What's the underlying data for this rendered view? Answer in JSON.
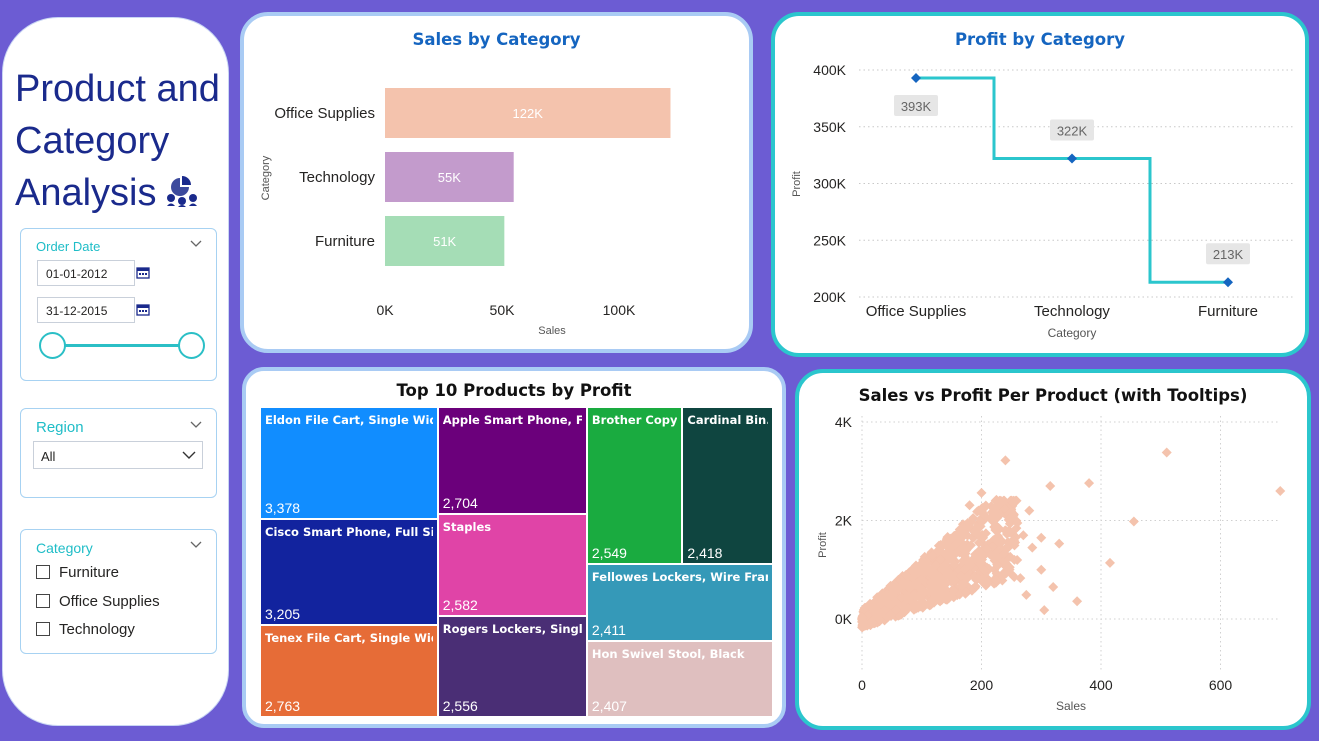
{
  "sidebar": {
    "title_lines": [
      "Product and",
      "Category",
      "Analysis"
    ],
    "title_icon": "analytics-icon",
    "order_date": {
      "label": "Order Date",
      "start": "01-01-2012",
      "end": "31-12-2015",
      "range": [
        0,
        1
      ]
    },
    "region": {
      "label": "Region",
      "selected": "All"
    },
    "category": {
      "label": "Category",
      "items": [
        {
          "label": "Furniture",
          "checked": false
        },
        {
          "label": "Office Supplies",
          "checked": false
        },
        {
          "label": "Technology",
          "checked": false
        }
      ]
    }
  },
  "colors": {
    "background": "#6c5cd3",
    "title_blue": "#1565c0",
    "accent_teal": "#2bc6cd",
    "profit_marker": "#1565c0",
    "scatter_points": "#f4c3ad"
  },
  "chart_data": [
    {
      "id": "sales_by_category",
      "type": "bar",
      "orientation": "horizontal",
      "title": "Sales by Category",
      "xlabel": "Sales",
      "ylabel": "Category",
      "categories": [
        "Office Supplies",
        "Technology",
        "Furniture"
      ],
      "values": [
        122000,
        55000,
        51000
      ],
      "data_labels": [
        "122K",
        "55K",
        "51K"
      ],
      "colors": [
        "#f4c3ad",
        "#c39bcc",
        "#a5ddb6"
      ],
      "xticks": [
        0,
        50000,
        100000
      ],
      "xtick_labels": [
        "0K",
        "50K",
        "100K"
      ],
      "xlim": [
        0,
        130000
      ]
    },
    {
      "id": "profit_by_category",
      "type": "line",
      "step": true,
      "title": "Profit by Category",
      "xlabel": "Category",
      "ylabel": "Profit",
      "categories": [
        "Office Supplies",
        "Technology",
        "Furniture"
      ],
      "values": [
        393000,
        322000,
        213000
      ],
      "data_labels": [
        "393K",
        "322K",
        "213K"
      ],
      "yticks": [
        200000,
        250000,
        300000,
        350000,
        400000
      ],
      "ytick_labels": [
        "200K",
        "250K",
        "300K",
        "350K",
        "400K"
      ],
      "ylim": [
        200000,
        400000
      ],
      "grid": true
    },
    {
      "id": "top10_products",
      "type": "treemap",
      "title": "Top 10 Products by Profit",
      "items": [
        {
          "name": "Eldon File Cart, Single Width",
          "value": 3378,
          "label": "3,378",
          "color": "#118dff"
        },
        {
          "name": "Cisco Smart Phone, Full Size",
          "value": 3205,
          "label": "3,205",
          "color": "#12239e"
        },
        {
          "name": "Tenex File Cart, Single Width",
          "value": 2763,
          "label": "2,763",
          "color": "#e66c37"
        },
        {
          "name": "Apple Smart Phone, F...",
          "value": 2704,
          "label": "2,704",
          "color": "#6b007b"
        },
        {
          "name": "Staples",
          "value": 2582,
          "label": "2,582",
          "color": "#e044a7"
        },
        {
          "name": "Rogers Lockers, Single...",
          "value": 2556,
          "label": "2,556",
          "color": "#4a2e75"
        },
        {
          "name": "Brother Copy...",
          "value": 2549,
          "label": "2,549",
          "color": "#1aab40"
        },
        {
          "name": "Cardinal Bin...",
          "value": 2418,
          "label": "2,418",
          "color": "#0f4540"
        },
        {
          "name": "Fellowes Lockers, Wire Frame",
          "value": 2411,
          "label": "2,411",
          "color": "#3599b8"
        },
        {
          "name": "Hon Swivel Stool, Black",
          "value": 2407,
          "label": "2,407",
          "color": "#dfbfbf"
        }
      ]
    },
    {
      "id": "sales_vs_profit",
      "type": "scatter",
      "title": "Sales vs Profit Per Product (with Tooltips)",
      "xlabel": "Sales",
      "ylabel": "Profit",
      "xticks": [
        0,
        200,
        400,
        600
      ],
      "yticks": [
        0,
        2000,
        4000
      ],
      "ytick_labels": [
        "0K",
        "2K",
        "4K"
      ],
      "xlim": [
        0,
        700
      ],
      "ylim": [
        -500,
        4000
      ],
      "grid": true,
      "marker": "diamond",
      "outliers": [
        [
          510,
          3380
        ],
        [
          700,
          2600
        ],
        [
          380,
          2760
        ],
        [
          455,
          1980
        ],
        [
          315,
          2700
        ],
        [
          240,
          3220
        ],
        [
          415,
          1140
        ],
        [
          320,
          650
        ],
        [
          300,
          1000
        ],
        [
          330,
          1530
        ],
        [
          270,
          1700
        ],
        [
          285,
          1450
        ],
        [
          260,
          1950
        ],
        [
          230,
          2320
        ],
        [
          215,
          2060
        ],
        [
          200,
          2560
        ],
        [
          250,
          2170
        ],
        [
          225,
          2420
        ],
        [
          280,
          2200
        ],
        [
          300,
          1650
        ],
        [
          255,
          1200
        ],
        [
          195,
          2200
        ],
        [
          180,
          2310
        ],
        [
          360,
          360
        ],
        [
          305,
          180
        ],
        [
          265,
          830
        ],
        [
          240,
          1430
        ],
        [
          275,
          490
        ]
      ],
      "cluster": {
        "sales_range": [
          0,
          260
        ],
        "profit_range": [
          -350,
          2400
        ],
        "count": 900
      }
    }
  ]
}
